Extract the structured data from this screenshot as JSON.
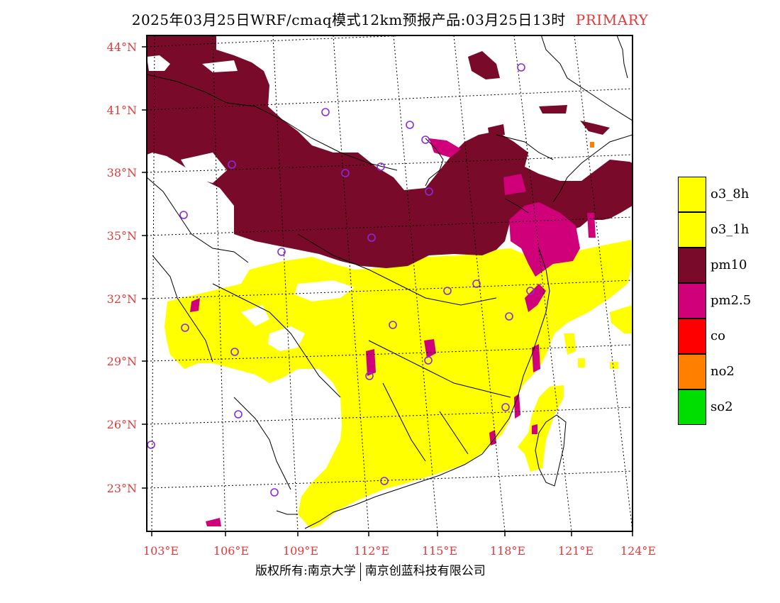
{
  "title": {
    "main": "2025年03月25日WRF/cmaq模式12km预报产品:03月25日13时",
    "tag": "PRIMARY"
  },
  "colors": {
    "o3_8h": "#ffff00",
    "o3_1h": "#ffff00",
    "pm10": "#7a0a2a",
    "pm25": "#d0007a",
    "co": "#ff0000",
    "no2": "#ff8000",
    "so2": "#00dd00",
    "axis_label": "#e03a3a",
    "station_marker": "#8a2be2"
  },
  "latitude_labels": [
    "44°N",
    "41°N",
    "38°N",
    "35°N",
    "32°N",
    "29°N",
    "26°N",
    "23°N"
  ],
  "longitude_labels": [
    "103°E",
    "106°E",
    "109°E",
    "112°E",
    "115°E",
    "118°E",
    "121°E",
    "124°E"
  ],
  "legend": [
    {
      "label": "o3_8h",
      "color": "#ffff00"
    },
    {
      "label": "o3_1h",
      "color": "#ffff00"
    },
    {
      "label": "pm10",
      "color": "#7a0a2a"
    },
    {
      "label": "pm2.5",
      "color": "#d0007a"
    },
    {
      "label": "co",
      "color": "#ff0000"
    },
    {
      "label": "no2",
      "color": "#ff8000"
    },
    {
      "label": "so2",
      "color": "#00dd00"
    }
  ],
  "footer": {
    "left": "版权所有:南京大学",
    "right": "南京创蓝科技有限公司"
  }
}
